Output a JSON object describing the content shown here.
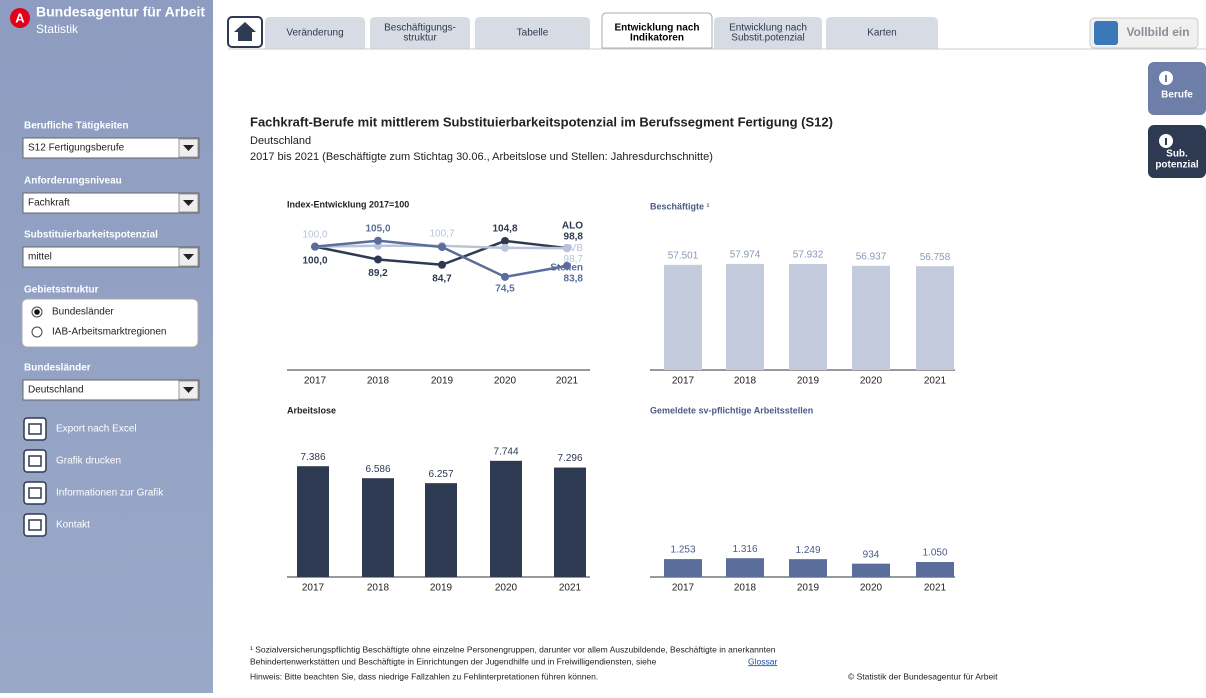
{
  "brand": {
    "name": "Bundesagentur für Arbeit",
    "sub": "Statistik"
  },
  "sidebar": {
    "sections": [
      {
        "label": "Berufliche Tätigkeiten",
        "value": "S12 Fertigungsberufe"
      },
      {
        "label": "Anforderungsniveau",
        "value": "Fachkraft"
      },
      {
        "label": "Substituierbarkeitspotenzial",
        "value": "mittel"
      }
    ],
    "gebiet": {
      "label": "Gebietsstruktur",
      "options": [
        "Bundesländer",
        "IAB-Arbeitsmarktregionen"
      ],
      "selected": 0
    },
    "bundeslaender": {
      "label": "Bundesländer",
      "value": "Deutschland"
    },
    "actions": [
      "Export nach Excel",
      "Grafik drucken",
      "Informationen zur Grafik",
      "Kontakt"
    ]
  },
  "tabs": [
    [
      "Veränderung"
    ],
    [
      "Beschäftigungs-",
      "struktur"
    ],
    [
      "Tabelle"
    ],
    [
      "Entwicklung nach",
      "Indikatoren"
    ],
    [
      "Entwicklung nach",
      "Substit.potenzial"
    ],
    [
      "Karten"
    ]
  ],
  "active_tab": 3,
  "fullscreen": "Vollbild ein",
  "side_buttons": [
    [
      "Berufe"
    ],
    [
      "Sub.",
      "potenzial"
    ]
  ],
  "header": {
    "title": "Fachkraft-Berufe mit mittlerem Substituierbarkeitspotenzial im Berufssegment Fertigung (S12)",
    "region": "Deutschland",
    "period": "2017 bis 2021 (Beschäftigte zum Stichtag 30.06., Arbeitslose und Stellen: Jahresdurchschnitte)"
  },
  "chart_data": [
    {
      "type": "line",
      "title": "Index-Entwicklung 2017=100",
      "categories": [
        "2017",
        "2018",
        "2019",
        "2020",
        "2021"
      ],
      "ylim": [
        55,
        125
      ],
      "series": [
        {
          "name": "ALO",
          "color": "#2e3a52",
          "values": [
            100,
            89.2,
            84.7,
            104.8,
            98.8
          ],
          "value_labels": [
            "100,0",
            "89,2",
            "84,7",
            "104,8",
            "98,8"
          ]
        },
        {
          "name": "SVB",
          "color": "#b9c3d9",
          "values": [
            100,
            100.8,
            100.7,
            99.0,
            98.7
          ],
          "value_labels": [
            "100,0",
            null,
            "100,7",
            null,
            "98,7"
          ]
        },
        {
          "name": "Stellen",
          "color": "#5b6d9a",
          "values": [
            100,
            105.0,
            99.7,
            74.5,
            83.8
          ],
          "value_labels": [
            null,
            "105,0",
            null,
            "74,5",
            "83,8"
          ]
        }
      ]
    },
    {
      "type": "bar",
      "title": "Beschäftigte ¹",
      "categories": [
        "2017",
        "2018",
        "2019",
        "2020",
        "2021"
      ],
      "values": [
        57501,
        57974,
        57932,
        56937,
        56758
      ],
      "value_labels": [
        "57.501",
        "57.974",
        "57.932",
        "56.937",
        "56.758"
      ],
      "color": "#c3cbdd",
      "label_color": "#8a98b8",
      "ylim": [
        0,
        82000
      ]
    },
    {
      "type": "bar",
      "title": "Arbeitslose",
      "categories": [
        "2017",
        "2018",
        "2019",
        "2020",
        "2021"
      ],
      "values": [
        7386,
        6586,
        6257,
        7744,
        7296
      ],
      "value_labels": [
        "7.386",
        "6.586",
        "6.257",
        "7.744",
        "7.296"
      ],
      "color": "#2e3a52",
      "label_color": "#2e3a52",
      "ylim": [
        0,
        10000
      ]
    },
    {
      "type": "bar",
      "title": "Gemeldete sv-pflichtige Arbeitsstellen",
      "categories": [
        "2017",
        "2018",
        "2019",
        "2020",
        "2021"
      ],
      "values": [
        1253,
        1316,
        1249,
        934,
        1050
      ],
      "value_labels": [
        "1.253",
        "1.316",
        "1.249",
        "934",
        "1.050"
      ],
      "color": "#5b6d9a",
      "label_color": "#4a5b86",
      "ylim": [
        0,
        10500
      ]
    }
  ],
  "footer": {
    "note_lines": [
      "¹ Sozialversicherungspflichtig Beschäftigte ohne einzelne Personengruppen, darunter vor allem Auszubildende, Beschäftigte in anerkannten",
      "Behindertenwerkstätten und Beschäftigte in Einrichtungen der Jugendhilfe und in Freiwilligendiensten, siehe"
    ],
    "link": "Glossar",
    "hint": "Hinweis: Bitte beachten Sie, dass niedrige Fallzahlen zu Fehlinterpretationen führen können.",
    "copyright": "© Statistik der Bundesagentur für Arbeit"
  }
}
